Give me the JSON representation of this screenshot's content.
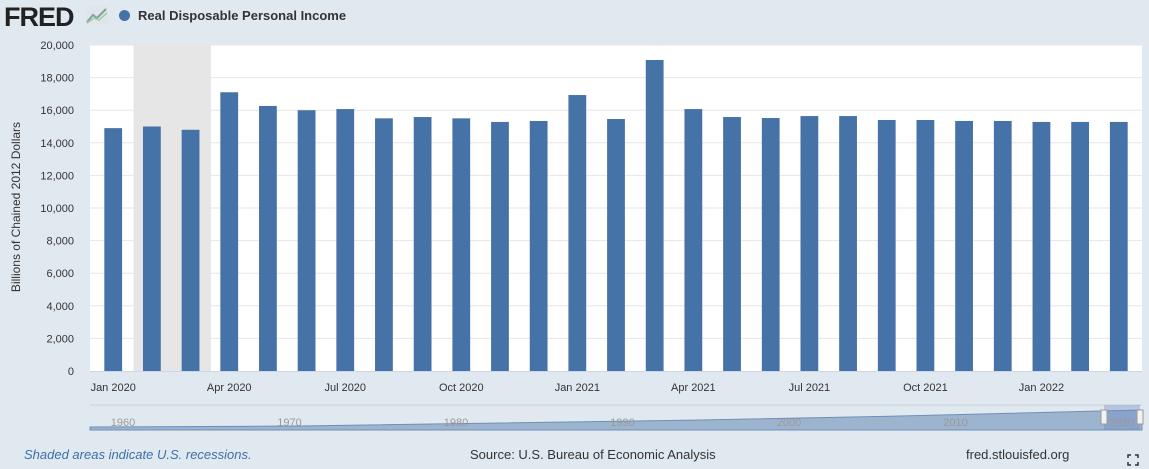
{
  "header": {
    "logo": "FRED",
    "series_name": "Real Disposable Personal Income"
  },
  "footer": {
    "recession_note": "Shaded areas indicate U.S. recessions.",
    "source": "Source: U.S. Bureau of Economic Analysis",
    "site": "fred.stlouisfed.org"
  },
  "colors": {
    "bar": "#4572a7",
    "recession": "#e6e6e6",
    "background": "#e1e9f0"
  },
  "navigator": {
    "labels": [
      "1960",
      "1970",
      "1980",
      "1990",
      "2000",
      "2010",
      "2020"
    ]
  },
  "chart_data": {
    "type": "bar",
    "title": "Real Disposable Personal Income",
    "ylabel": "Billions of Chained 2012 Dollars",
    "ylim": [
      0,
      20000
    ],
    "yticks": [
      0,
      2000,
      4000,
      6000,
      8000,
      10000,
      12000,
      14000,
      16000,
      18000,
      20000
    ],
    "ytick_labels": [
      "0",
      "2,000",
      "4,000",
      "6,000",
      "8,000",
      "10,000",
      "12,000",
      "14,000",
      "16,000",
      "18,000",
      "20,000"
    ],
    "categories": [
      "2020-01",
      "2020-02",
      "2020-03",
      "2020-04",
      "2020-05",
      "2020-06",
      "2020-07",
      "2020-08",
      "2020-09",
      "2020-10",
      "2020-11",
      "2020-12",
      "2021-01",
      "2021-02",
      "2021-03",
      "2021-04",
      "2021-05",
      "2021-06",
      "2021-07",
      "2021-08",
      "2021-09",
      "2021-10",
      "2021-11",
      "2021-12",
      "2022-01",
      "2022-02",
      "2022-03"
    ],
    "values": [
      14900,
      15000,
      14800,
      17100,
      16260,
      16000,
      16070,
      15500,
      15580,
      15500,
      15280,
      15340,
      16930,
      15460,
      19080,
      16070,
      15580,
      15520,
      15640,
      15640,
      15400,
      15400,
      15340,
      15340,
      15280,
      15280,
      15280
    ],
    "xtick_labels": [
      {
        "index": 0,
        "label": "Jan 2020"
      },
      {
        "index": 3,
        "label": "Apr 2020"
      },
      {
        "index": 6,
        "label": "Jul 2020"
      },
      {
        "index": 9,
        "label": "Oct 2020"
      },
      {
        "index": 12,
        "label": "Jan 2021"
      },
      {
        "index": 15,
        "label": "Apr 2021"
      },
      {
        "index": 18,
        "label": "Jul 2021"
      },
      {
        "index": 21,
        "label": "Oct 2021"
      },
      {
        "index": 24,
        "label": "Jan 2022"
      }
    ],
    "recession": {
      "start_index": 1,
      "end_index": 3
    },
    "grid": true,
    "legend": "top-left"
  }
}
